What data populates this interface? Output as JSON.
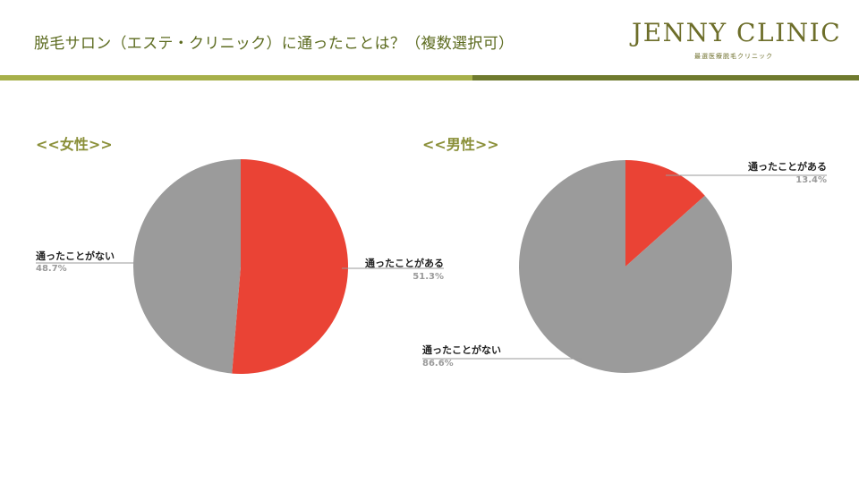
{
  "header": {
    "title": "脱毛サロン（エステ・クリニック）に通ったことは？（複数選択可）",
    "logo_main": "JENNY CLINIC",
    "logo_sub": "最選医療脱毛クリニック"
  },
  "colors": {
    "slice_yes": "#ea4335",
    "slice_no": "#9b9b9b",
    "title_text": "#5c6b1f",
    "band_light": "#a7b04a",
    "band_dark": "#6f7a2e"
  },
  "chart_data": [
    {
      "type": "pie",
      "title": "<<女性>>",
      "slices": [
        {
          "label": "通ったことがある",
          "value": 51.3,
          "display": "51.3%",
          "color": "#ea4335"
        },
        {
          "label": "通ったことがない",
          "value": 48.7,
          "display": "48.7%",
          "color": "#9b9b9b"
        }
      ]
    },
    {
      "type": "pie",
      "title": "<<男性>>",
      "slices": [
        {
          "label": "通ったことがある",
          "value": 13.4,
          "display": "13.4%",
          "color": "#ea4335"
        },
        {
          "label": "通ったことがない",
          "value": 86.6,
          "display": "86.6%",
          "color": "#9b9b9b"
        }
      ]
    }
  ]
}
